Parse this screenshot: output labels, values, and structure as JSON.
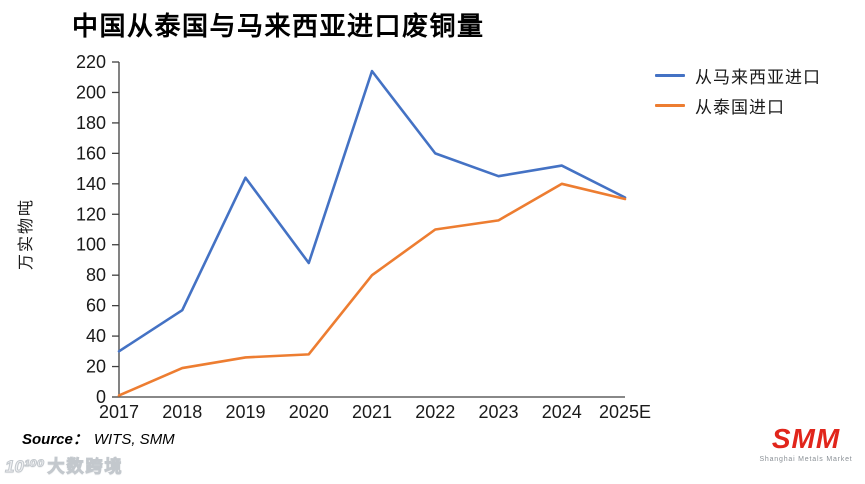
{
  "title": "中国从泰国与马来西亚进口废铜量",
  "y_axis_title": "万实物吨",
  "legend": [
    {
      "label": "从马来西亚进口",
      "color": "#4472C4"
    },
    {
      "label": "从泰国进口",
      "color": "#ED7D31"
    }
  ],
  "source": {
    "prefix": "Source：",
    "text": "WITS, SMM"
  },
  "watermark": {
    "logo": "10¹⁰⁰",
    "text": "大数跨境"
  },
  "logo": {
    "text": "SMM",
    "tagline": "Shanghai Metals Market",
    "color": "#E1251B"
  },
  "chart_data": {
    "type": "line",
    "title": "中国从泰国与马来西亚进口废铜量",
    "xlabel": "",
    "ylabel": "万实物吨",
    "categories": [
      "2017",
      "2018",
      "2019",
      "2020",
      "2021",
      "2022",
      "2023",
      "2024",
      "2025E"
    ],
    "series": [
      {
        "name": "从马来西亚进口",
        "color": "#4472C4",
        "values": [
          30,
          57,
          144,
          88,
          214,
          160,
          145,
          152,
          131
        ]
      },
      {
        "name": "从泰国进口",
        "color": "#ED7D31",
        "values": [
          1,
          19,
          26,
          28,
          80,
          110,
          116,
          140,
          130
        ]
      }
    ],
    "ylim": [
      0,
      220
    ],
    "ytick_step": 20,
    "grid": false,
    "legend_position": "top-right",
    "source": "WITS, SMM"
  }
}
